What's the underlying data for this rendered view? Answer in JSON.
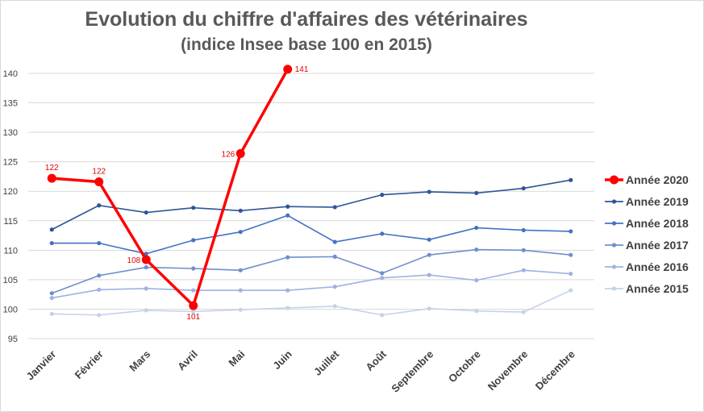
{
  "chart_data": {
    "type": "line",
    "title": "Evolution du chiffre d'affaires des vétérinaires",
    "subtitle": "(indice Insee base 100 en 2015)",
    "xlabel": "",
    "ylabel": "",
    "ylim": [
      95,
      140
    ],
    "yticks": [
      "95",
      "100",
      "105",
      "110",
      "115",
      "120",
      "125",
      "130",
      "135",
      "140"
    ],
    "grid": true,
    "legend_position": "right",
    "categories": [
      "Janvier",
      "Février",
      "Mars",
      "Avril",
      "Mai",
      "Juin",
      "Juillet",
      "Août",
      "Septembre",
      "Octobre",
      "Novembre",
      "Décembre"
    ],
    "series": [
      {
        "name": "Année 2020",
        "color": "#ff0000",
        "values": [
          122.2,
          121.6,
          108.4,
          100.6,
          126.4,
          140.7,
          null,
          null,
          null,
          null,
          null,
          null
        ],
        "data_labels": [
          "122",
          "122",
          "108",
          "101",
          "126",
          "141"
        ]
      },
      {
        "name": "Année 2019",
        "color": "#2f5597",
        "values": [
          113.5,
          117.6,
          116.4,
          117.2,
          116.7,
          117.4,
          117.3,
          119.4,
          119.9,
          119.7,
          120.5,
          121.9
        ]
      },
      {
        "name": "Année 2018",
        "color": "#4472c4",
        "values": [
          111.2,
          111.2,
          109.4,
          111.7,
          113.1,
          115.9,
          111.4,
          112.8,
          111.8,
          113.8,
          113.4,
          113.2
        ]
      },
      {
        "name": "Année 2017",
        "color": "#6e8fcf",
        "values": [
          102.7,
          105.7,
          107.1,
          106.9,
          106.6,
          108.8,
          108.9,
          106.1,
          109.2,
          110.1,
          110.0,
          109.2
        ]
      },
      {
        "name": "Année 2016",
        "color": "#9db3e0",
        "values": [
          101.9,
          103.3,
          103.5,
          103.2,
          103.2,
          103.2,
          103.8,
          105.3,
          105.8,
          104.9,
          106.6,
          106.0
        ]
      },
      {
        "name": "Année 2015",
        "color": "#c5d2ea",
        "values": [
          99.2,
          99.0,
          99.8,
          99.6,
          99.9,
          100.2,
          100.5,
          99.0,
          100.1,
          99.7,
          99.5,
          103.2
        ]
      }
    ]
  }
}
